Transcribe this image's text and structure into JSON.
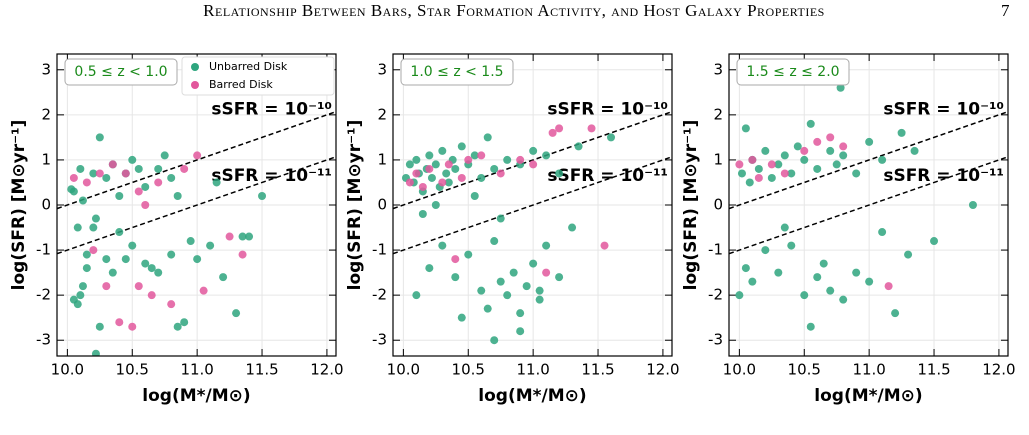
{
  "header": {
    "title": "Relationship Between Bars, Star Formation Activity, and Host Galaxy Properties",
    "page": "7"
  },
  "chart_data": [
    {
      "type": "scatter",
      "annotation": "0.5 ≤ z < 1.0",
      "xlabel": "log(M*/M⊙)",
      "ylabel": "log(SFR) [M⊙yr⁻¹]",
      "xlim": [
        9.92,
        12.07
      ],
      "ylim": [
        -3.35,
        3.35
      ],
      "xticks": [
        {
          "value": 10,
          "label": "10.0"
        },
        10.5,
        {
          "value": 11,
          "label": "11.0"
        },
        11.5,
        {
          "value": 12,
          "label": "12.0"
        }
      ],
      "yticks": [
        -3,
        -2,
        -1,
        0,
        1,
        2,
        3
      ],
      "grid": true,
      "legend": "upper right",
      "reference_lines": [
        {
          "label": "sSFR = 10⁻¹⁰",
          "log_ssfr": -10
        },
        {
          "label": "sSFR = 10⁻¹¹",
          "log_ssfr": -11
        }
      ],
      "series": [
        {
          "name": "Unbarred Disk",
          "color": "#2ea57e",
          "x": [
            10.03,
            10.05,
            10.08,
            10.1,
            10.12,
            10.15,
            10.2,
            10.22,
            10.25,
            10.3,
            10.35,
            10.4,
            10.45,
            10.5,
            10.55,
            10.6,
            10.7,
            10.75,
            10.8,
            10.85,
            10.05,
            10.1,
            10.15,
            10.2,
            10.3,
            10.35,
            10.4,
            10.5,
            10.6,
            10.7,
            10.8,
            10.9,
            11.0,
            11.1,
            11.2,
            11.3,
            11.4,
            11.5,
            10.85,
            10.95,
            10.08,
            10.12,
            10.25,
            10.45,
            10.65,
            11.15,
            11.35,
            10.22
          ],
          "values": [
            0.35,
            0.3,
            -0.5,
            0.8,
            0.1,
            -1.1,
            0.7,
            -0.3,
            1.5,
            0.6,
            0.9,
            0.2,
            0.7,
            1.0,
            0.8,
            0.4,
            0.8,
            1.1,
            0.6,
            0.2,
            -2.1,
            -2.0,
            -1.4,
            -0.5,
            -1.2,
            -1.5,
            -0.6,
            -0.9,
            -1.3,
            -1.5,
            -1.1,
            -2.6,
            -1.2,
            -0.9,
            -1.6,
            -2.4,
            -0.7,
            0.2,
            -2.7,
            -0.8,
            -2.2,
            -1.8,
            -2.7,
            -1.2,
            -1.4,
            0.5,
            -0.7,
            -3.3
          ]
        },
        {
          "name": "Barred Disk",
          "color": "#e2579c",
          "x": [
            10.05,
            10.15,
            10.25,
            10.35,
            10.45,
            10.55,
            10.6,
            10.7,
            10.9,
            11.0,
            10.2,
            10.3,
            10.4,
            10.5,
            10.55,
            10.65,
            10.8,
            11.05,
            11.35,
            11.25
          ],
          "values": [
            0.6,
            0.5,
            0.7,
            0.9,
            0.7,
            0.3,
            0.0,
            0.5,
            0.8,
            1.1,
            -1.0,
            -1.8,
            -2.6,
            -2.7,
            -1.8,
            -2.0,
            -2.2,
            -1.9,
            -1.1,
            -0.7
          ]
        }
      ]
    },
    {
      "type": "scatter",
      "annotation": "1.0 ≤ z < 1.5",
      "xlabel": "log(M*/M⊙)",
      "ylabel": "log(SFR) [M⊙yr⁻¹]",
      "xlim": [
        9.92,
        12.07
      ],
      "ylim": [
        -3.35,
        3.35
      ],
      "xticks": [
        {
          "value": 10,
          "label": "10.0"
        },
        10.5,
        {
          "value": 11,
          "label": "11.0"
        },
        11.5,
        {
          "value": 12,
          "label": "12.0"
        }
      ],
      "yticks": [
        -3,
        -2,
        -1,
        0,
        1,
        2,
        3
      ],
      "grid": true,
      "reference_lines": [
        {
          "label": "sSFR = 10⁻¹⁰",
          "log_ssfr": -10
        },
        {
          "label": "sSFR = 10⁻¹¹",
          "log_ssfr": -11
        }
      ],
      "series": [
        {
          "color": "#2ea57e",
          "x": [
            10.02,
            10.05,
            10.08,
            10.1,
            10.12,
            10.15,
            10.18,
            10.2,
            10.22,
            10.25,
            10.28,
            10.3,
            10.33,
            10.35,
            10.38,
            10.4,
            10.45,
            10.5,
            10.55,
            10.6,
            10.65,
            10.7,
            10.8,
            10.9,
            11.0,
            11.1,
            11.2,
            11.35,
            11.6,
            10.1,
            10.2,
            10.3,
            10.4,
            10.5,
            10.6,
            10.65,
            10.7,
            10.75,
            10.8,
            10.85,
            10.9,
            10.95,
            11.0,
            11.05,
            11.1,
            11.2,
            11.3,
            10.15,
            10.55,
            10.75,
            10.9,
            11.05,
            10.45,
            10.7,
            10.25
          ],
          "values": [
            0.6,
            0.9,
            0.5,
            1.0,
            0.7,
            0.3,
            0.8,
            1.1,
            0.6,
            0.9,
            0.4,
            1.2,
            0.7,
            0.5,
            1.0,
            0.8,
            1.3,
            0.9,
            1.1,
            0.6,
            1.5,
            0.8,
            1.0,
            0.9,
            1.2,
            1.1,
            0.7,
            1.3,
            1.5,
            -2.0,
            -1.4,
            -0.9,
            -1.6,
            -1.1,
            -1.9,
            -2.3,
            -0.8,
            -1.7,
            -2.0,
            -1.5,
            -2.4,
            -1.8,
            -1.3,
            -2.1,
            -0.9,
            -1.6,
            -0.5,
            -0.2,
            0.2,
            -0.3,
            -2.8,
            -1.9,
            -2.5,
            -3.0,
            0.0
          ]
        },
        {
          "color": "#e2579c",
          "x": [
            10.05,
            10.1,
            10.15,
            10.2,
            10.3,
            10.35,
            10.45,
            10.5,
            10.6,
            10.75,
            10.9,
            11.0,
            11.15,
            11.2,
            11.45,
            10.4,
            11.1,
            11.55
          ],
          "values": [
            0.5,
            0.7,
            0.4,
            0.8,
            0.5,
            0.9,
            0.6,
            1.0,
            1.1,
            0.7,
            1.0,
            0.9,
            1.6,
            1.7,
            1.7,
            -1.2,
            -1.5,
            -0.9
          ]
        }
      ]
    },
    {
      "type": "scatter",
      "annotation": "1.5 ≤ z ≤ 2.0",
      "xlabel": "log(M*/M⊙)",
      "ylabel": "log(SFR) [M⊙yr⁻¹]",
      "xlim": [
        9.92,
        12.07
      ],
      "ylim": [
        -3.35,
        3.35
      ],
      "xticks": [
        {
          "value": 10,
          "label": "10.0"
        },
        10.5,
        {
          "value": 11,
          "label": "11.0"
        },
        11.5,
        {
          "value": 12,
          "label": "12.0"
        }
      ],
      "yticks": [
        -3,
        -2,
        -1,
        0,
        1,
        2,
        3
      ],
      "grid": true,
      "reference_lines": [
        {
          "label": "sSFR = 10⁻¹⁰",
          "log_ssfr": -10
        },
        {
          "label": "sSFR = 10⁻¹¹",
          "log_ssfr": -11
        }
      ],
      "series": [
        {
          "color": "#2ea57e",
          "x": [
            10.02,
            10.05,
            10.08,
            10.1,
            10.15,
            10.2,
            10.25,
            10.3,
            10.35,
            10.4,
            10.45,
            10.5,
            10.55,
            10.6,
            10.7,
            10.75,
            10.8,
            10.9,
            11.0,
            11.1,
            11.25,
            11.35,
            10.0,
            10.05,
            10.1,
            10.2,
            10.3,
            10.4,
            10.5,
            10.6,
            10.7,
            10.8,
            10.9,
            11.0,
            11.1,
            11.2,
            11.3,
            11.5,
            11.8,
            10.78,
            10.55,
            10.35,
            10.65
          ],
          "values": [
            0.7,
            1.7,
            0.5,
            1.0,
            0.8,
            1.2,
            0.6,
            0.9,
            1.1,
            0.7,
            1.3,
            1.0,
            1.8,
            0.8,
            1.2,
            0.9,
            1.1,
            0.7,
            1.4,
            1.0,
            1.6,
            1.2,
            -2.0,
            -1.4,
            -1.7,
            -1.0,
            -1.5,
            -0.9,
            -2.0,
            -1.6,
            -1.9,
            -2.1,
            -1.5,
            -1.7,
            -0.6,
            -2.4,
            -1.1,
            -0.8,
            0.0,
            2.6,
            -2.7,
            -0.5,
            -1.3
          ]
        },
        {
          "color": "#e2579c",
          "x": [
            10.0,
            10.1,
            10.15,
            10.25,
            10.35,
            10.5,
            10.6,
            10.7,
            10.8,
            11.15
          ],
          "values": [
            0.9,
            1.0,
            0.6,
            0.9,
            0.7,
            1.2,
            1.4,
            1.5,
            1.3,
            -1.8
          ]
        }
      ]
    }
  ]
}
